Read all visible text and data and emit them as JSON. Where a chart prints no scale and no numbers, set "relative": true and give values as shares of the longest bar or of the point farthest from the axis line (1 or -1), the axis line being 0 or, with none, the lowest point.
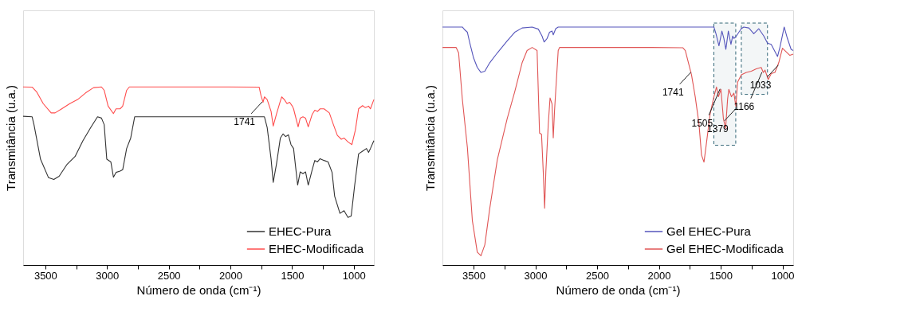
{
  "chart_data": [
    {
      "type": "line",
      "relative": true,
      "xlabel": "Número de onda (cm⁻¹)",
      "ylabel": "Transmitância (u.a.)",
      "xlim": [
        3680,
        837
      ],
      "xticks": [
        3500,
        {
          "value": 3250,
          "label": null
        },
        3000,
        {
          "value": 2750,
          "label": null
        },
        2500,
        {
          "value": 2250,
          "label": null
        },
        2000,
        {
          "value": 1750,
          "label": null
        },
        1500,
        {
          "value": 1250,
          "label": null
        },
        1000
      ],
      "tick_labels": "x",
      "legend": "bottom right",
      "grid": false,
      "series": [
        {
          "name": "EHEC-Pura",
          "color": "#333333",
          "x": [
            3680,
            3607,
            3592,
            3539,
            3474,
            3431,
            3388,
            3324,
            3259,
            3195,
            3131,
            3077,
            3045,
            3023,
            3002,
            2969,
            2948,
            2927,
            2894,
            2873,
            2841,
            2808,
            2776,
            2658,
            2014,
            1724,
            1702,
            1670,
            1653,
            1627,
            1595,
            1573,
            1552,
            1530,
            1509,
            1488,
            1455,
            1434,
            1412,
            1391,
            1369,
            1337,
            1316,
            1294,
            1273,
            1241,
            1208,
            1176,
            1155,
            1112,
            1079,
            1047,
            1021,
            993,
            961,
            929,
            897,
            880,
            865,
            837
          ],
          "values": [
            0.835,
            0.832,
            0.788,
            0.594,
            0.49,
            0.48,
            0.498,
            0.565,
            0.609,
            0.698,
            0.773,
            0.832,
            0.825,
            0.788,
            0.594,
            0.579,
            0.493,
            0.52,
            0.527,
            0.535,
            0.654,
            0.713,
            0.832,
            0.832,
            0.832,
            0.832,
            0.773,
            0.594,
            0.464,
            0.565,
            0.713,
            0.736,
            0.721,
            0.731,
            0.676,
            0.654,
            0.449,
            0.523,
            0.513,
            0.523,
            0.449,
            0.535,
            0.587,
            0.579,
            0.597,
            0.587,
            0.579,
            0.52,
            0.386,
            0.29,
            0.305,
            0.267,
            0.275,
            0.446,
            0.624,
            0.639,
            0.654,
            0.632,
            0.654,
            0.698
          ]
        },
        {
          "name": "EHEC-Modificada",
          "color": "#ff4d4d",
          "x": [
            3680,
            3607,
            3571,
            3517,
            3453,
            3421,
            3367,
            3302,
            3238,
            3174,
            3109,
            3045,
            3023,
            2991,
            2948,
            2927,
            2894,
            2873,
            2841,
            2819,
            2658,
            2014,
            1767,
            1752,
            1735,
            1724,
            1702,
            1670,
            1653,
            1627,
            1595,
            1584,
            1563,
            1541,
            1520,
            1498,
            1488,
            1451,
            1434,
            1412,
            1391,
            1369,
            1337,
            1316,
            1294,
            1273,
            1241,
            1198,
            1165,
            1133,
            1101,
            1079,
            1047,
            1015,
            987,
            961,
            929,
            908,
            880,
            865,
            837
          ],
          "values": [
            1.0,
            0.999,
            0.973,
            0.906,
            0.854,
            0.854,
            0.877,
            0.906,
            0.929,
            0.966,
            0.996,
            1.0,
            0.981,
            0.892,
            0.85,
            0.877,
            0.877,
            0.892,
            0.981,
            1.0,
            1.0,
            1.0,
            0.999,
            0.951,
            0.914,
            0.944,
            0.929,
            0.862,
            0.78,
            0.846,
            0.921,
            0.944,
            0.929,
            0.906,
            0.914,
            0.892,
            0.877,
            0.776,
            0.825,
            0.832,
            0.825,
            0.776,
            0.846,
            0.869,
            0.862,
            0.877,
            0.877,
            0.854,
            0.788,
            0.728,
            0.706,
            0.713,
            0.691,
            0.676,
            0.758,
            0.877,
            0.895,
            0.884,
            0.892,
            0.877,
            0.929
          ]
        }
      ],
      "annotations": [
        {
          "text": "1741",
          "x": 1741,
          "y": 0.93
        }
      ]
    },
    {
      "type": "line",
      "relative": true,
      "xlabel": "Número de onda (cm⁻¹)",
      "ylabel": "Transmitância (u.a.)",
      "xlim": [
        3752,
        913
      ],
      "xticks": [
        3500,
        {
          "value": 3250,
          "label": null
        },
        3000,
        {
          "value": 2750,
          "label": null
        },
        2500,
        {
          "value": 2250,
          "label": null
        },
        2000,
        {
          "value": 1750,
          "label": null
        },
        1500,
        {
          "value": 1250,
          "label": null
        },
        1000
      ],
      "tick_labels": "x",
      "legend": "bottom right",
      "grid": false,
      "series": [
        {
          "name": "Gel EHEC-Pura",
          "color": "#5555bb",
          "x": [
            3752,
            3591,
            3571,
            3550,
            3530,
            3500,
            3470,
            3440,
            3409,
            3369,
            3308,
            3228,
            3167,
            3107,
            3026,
            2976,
            2946,
            2929,
            2905,
            2885,
            2865,
            2855,
            2835,
            2815,
            2663,
            2059,
            1555,
            1538,
            1514,
            1490,
            1474,
            1458,
            1438,
            1417,
            1403,
            1393,
            1373,
            1353,
            1333,
            1313,
            1272,
            1232,
            1192,
            1151,
            1121,
            1091,
            1040,
            1020,
            986,
            960,
            930,
            913
          ],
          "values": [
            1.0,
            1.0,
            0.988,
            0.978,
            0.932,
            0.87,
            0.83,
            0.809,
            0.814,
            0.85,
            0.891,
            0.942,
            0.978,
            0.996,
            1.0,
            0.991,
            0.962,
            0.937,
            0.952,
            0.978,
            0.983,
            0.967,
            0.993,
            1.0,
            1.0,
            1.0,
            1.0,
            0.972,
            0.921,
            0.983,
            0.952,
            0.906,
            0.983,
            0.927,
            0.962,
            0.952,
            0.962,
            0.978,
            0.993,
            1.0,
            0.996,
            0.972,
            0.993,
            0.962,
            0.932,
            0.927,
            0.876,
            0.916,
            1.0,
            0.952,
            0.906,
            0.901
          ]
        },
        {
          "name": "Gel EHEC-Modificada",
          "color": "#e05555",
          "x": [
            3752,
            3641,
            3621,
            3591,
            3550,
            3510,
            3470,
            3440,
            3409,
            3369,
            3308,
            3228,
            3167,
            3107,
            3067,
            3026,
            2986,
            2966,
            2950,
            2936,
            2925,
            2915,
            2895,
            2881,
            2865,
            2855,
            2845,
            2815,
            2804,
            2663,
            2059,
            1807,
            1786,
            1766,
            1736,
            1706,
            1676,
            1655,
            1635,
            1615,
            1585,
            1555,
            1534,
            1518,
            1498,
            1478,
            1460,
            1444,
            1434,
            1413,
            1393,
            1377,
            1363,
            1333,
            1292,
            1252,
            1212,
            1172,
            1155,
            1141,
            1115,
            1091,
            1061,
            1030,
            1000,
            970,
            940,
            913
          ],
          "values": [
            0.914,
            0.914,
            0.891,
            0.697,
            0.493,
            0.187,
            0.054,
            0.039,
            0.085,
            0.238,
            0.442,
            0.615,
            0.728,
            0.85,
            0.901,
            0.914,
            0.901,
            0.554,
            0.549,
            0.391,
            0.238,
            0.391,
            0.595,
            0.702,
            0.677,
            0.534,
            0.646,
            0.901,
            0.914,
            0.914,
            0.914,
            0.913,
            0.901,
            0.86,
            0.799,
            0.707,
            0.595,
            0.462,
            0.432,
            0.513,
            0.636,
            0.707,
            0.748,
            0.707,
            0.738,
            0.615,
            0.574,
            0.697,
            0.738,
            0.707,
            0.722,
            0.666,
            0.768,
            0.799,
            0.809,
            0.814,
            0.824,
            0.83,
            0.809,
            0.819,
            0.779,
            0.804,
            0.809,
            0.85,
            0.911,
            0.896,
            0.881,
            0.886
          ]
        }
      ],
      "bands": [
        {
          "axis": "x",
          "from": 1555,
          "to": 1378,
          "color": "#336677"
        },
        {
          "axis": "x",
          "from": 1333,
          "to": 1121,
          "color": "#336677"
        }
      ],
      "annotations": [
        {
          "text": "1741",
          "x": 1741,
          "y": 0.82
        },
        {
          "text": "1505",
          "x": 1505,
          "y": 0.75
        },
        {
          "text": "1379",
          "x": 1379,
          "y": 0.666
        },
        {
          "text": "1166",
          "x": 1166,
          "y": 0.82
        },
        {
          "text": "1033",
          "x": 1033,
          "y": 0.85
        }
      ]
    }
  ]
}
